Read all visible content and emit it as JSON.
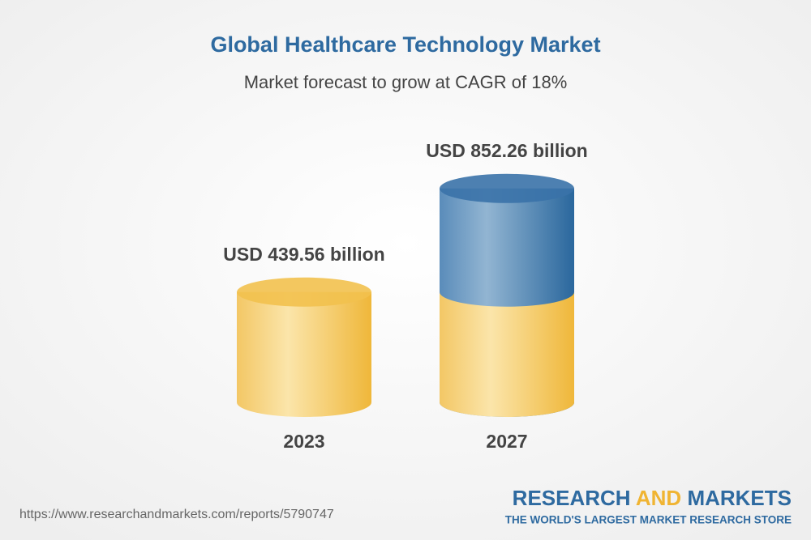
{
  "chart_data": {
    "type": "bar",
    "title": "Global Healthcare Technology Market",
    "subtitle": "Market forecast to grow at CAGR of 18%",
    "categories": [
      "2023",
      "2027"
    ],
    "values": [
      439.56,
      852.26
    ],
    "value_labels": [
      "USD 439.56 billion",
      "USD 852.26 billion"
    ],
    "colors": [
      "#f2c14e",
      "#3a72a8"
    ]
  },
  "footer": {
    "url": "https://www.researchandmarkets.com/reports/5790747",
    "brand": [
      "RESEARCH",
      "AND",
      "MARKETS"
    ],
    "tagline": "THE WORLD'S LARGEST MARKET RESEARCH STORE"
  }
}
